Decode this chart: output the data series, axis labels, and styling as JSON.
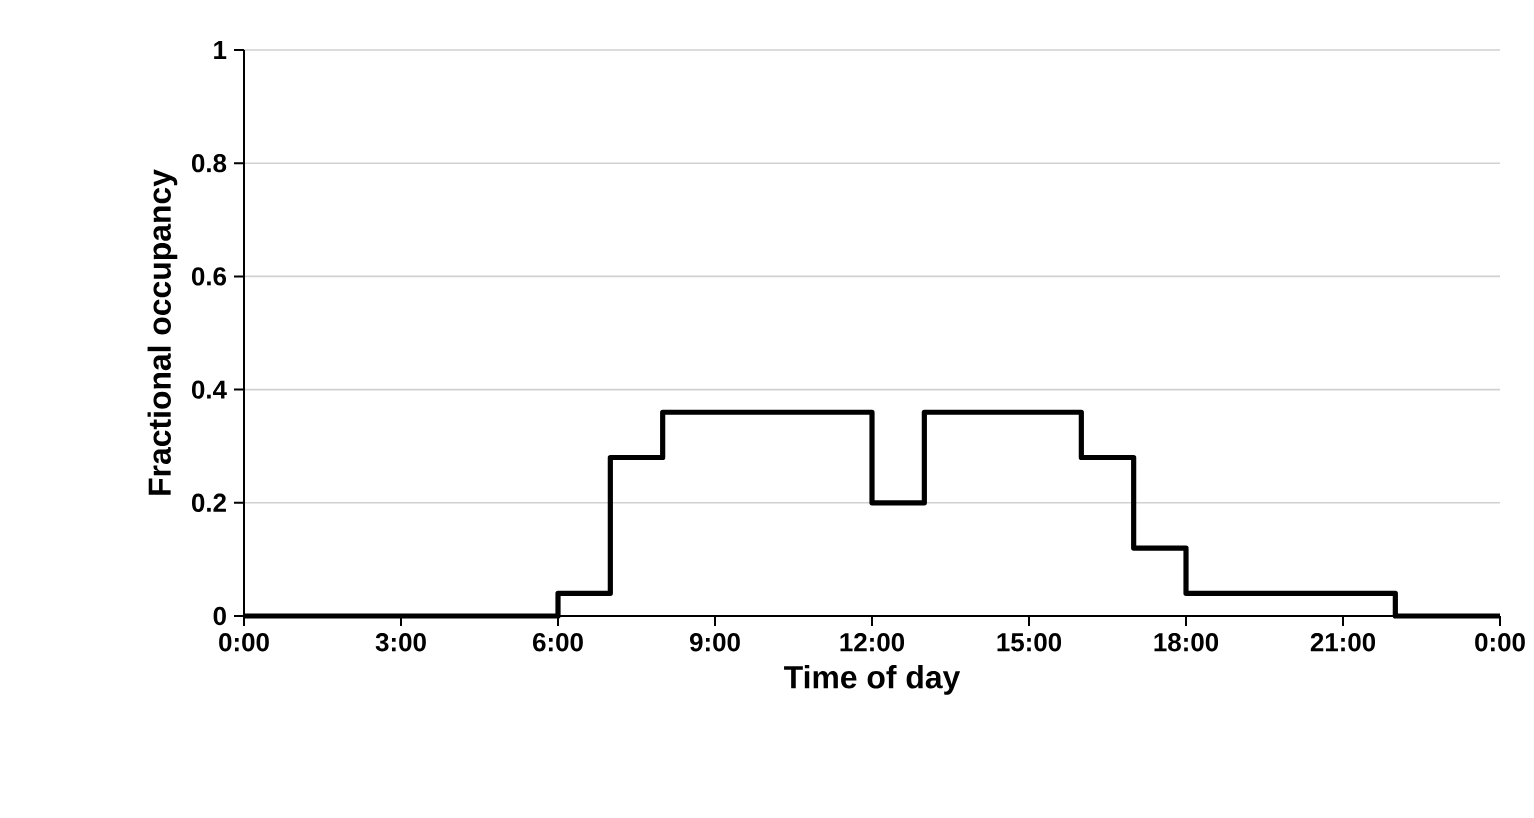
{
  "chart_data": {
    "type": "step",
    "xlabel": "Time of day",
    "ylabel": "Fractional occupancy",
    "x": [
      0,
      6,
      7,
      8,
      12,
      13,
      16,
      17,
      18,
      22,
      24
    ],
    "values": [
      0,
      0.04,
      0.28,
      0.36,
      0.2,
      0.36,
      0.28,
      0.12,
      0.04,
      0,
      0
    ],
    "color": "#000000",
    "xlim": [
      0,
      24
    ],
    "xticks": [
      {
        "value": 0,
        "label": "0:00"
      },
      {
        "value": 3,
        "label": "3:00"
      },
      {
        "value": 6,
        "label": "6:00"
      },
      {
        "value": 9,
        "label": "9:00"
      },
      {
        "value": 12,
        "label": "12:00"
      },
      {
        "value": 15,
        "label": "15:00"
      },
      {
        "value": 18,
        "label": "18:00"
      },
      {
        "value": 21,
        "label": "21:00"
      },
      {
        "value": 24,
        "label": "0:00"
      }
    ],
    "ylim": [
      0,
      1
    ],
    "yticks": [
      0,
      0.2,
      0.4,
      0.6,
      0.8,
      1
    ],
    "grid": "y"
  }
}
